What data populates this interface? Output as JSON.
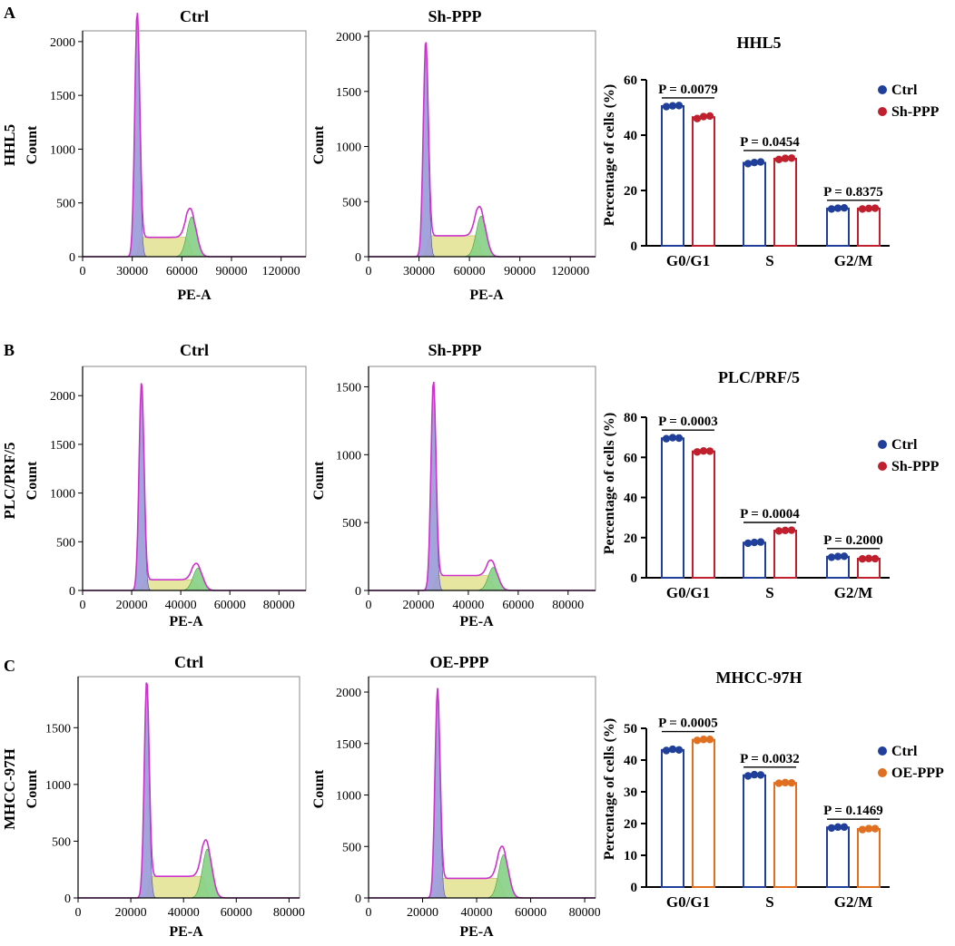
{
  "panels": [
    {
      "letter": "A",
      "row_label": "HHL5",
      "histograms": [
        {
          "title": "Ctrl",
          "ylabel": "Count",
          "xlabel": "PE-A",
          "xticks": [
            "0",
            "30000",
            "60000",
            "90000",
            "120000"
          ],
          "yticks": [
            "0",
            "500",
            "1000",
            "1500",
            "2000"
          ]
        },
        {
          "title": "Sh-PPP",
          "ylabel": "Count",
          "xlabel": "PE-A",
          "xticks": [
            "0",
            "30000",
            "60000",
            "90000",
            "120000"
          ],
          "yticks": [
            "0",
            "500",
            "1000",
            "1500",
            "2000"
          ]
        }
      ],
      "bar_title": "HHL5",
      "bar_ylabel": "Percentage of cells (%)",
      "bar_yticks": [
        "0",
        "20",
        "40",
        "60"
      ],
      "legend": [
        "Ctrl",
        "Sh-PPP"
      ],
      "pvalues": [
        "P = 0.0079",
        "P = 0.0454",
        "P = 0.8375"
      ]
    },
    {
      "letter": "B",
      "row_label": "PLC/PRF/5",
      "histograms": [
        {
          "title": "Ctrl",
          "ylabel": "Count",
          "xlabel": "PE-A",
          "xticks": [
            "0",
            "20000",
            "40000",
            "60000",
            "80000"
          ],
          "yticks": [
            "0",
            "500",
            "1000",
            "1500",
            "2000"
          ]
        },
        {
          "title": "Sh-PPP",
          "ylabel": "Count",
          "xlabel": "PE-A",
          "xticks": [
            "0",
            "20000",
            "40000",
            "60000",
            "80000"
          ],
          "yticks": [
            "0",
            "500",
            "1000",
            "1500"
          ]
        }
      ],
      "bar_title": "PLC/PRF/5",
      "bar_ylabel": "Percentage of cells (%)",
      "bar_yticks": [
        "0",
        "20",
        "40",
        "60",
        "80"
      ],
      "legend": [
        "Ctrl",
        "Sh-PPP"
      ],
      "pvalues": [
        "P = 0.0003",
        "P = 0.0004",
        "P = 0.2000"
      ]
    },
    {
      "letter": "C",
      "row_label": "MHCC-97H",
      "histograms": [
        {
          "title": "Ctrl",
          "ylabel": "Count",
          "xlabel": "PE-A",
          "xticks": [
            "0",
            "20000",
            "40000",
            "60000",
            "80000"
          ],
          "yticks": [
            "0",
            "500",
            "1000",
            "1500"
          ]
        },
        {
          "title": "OE-PPP",
          "ylabel": "Count",
          "xlabel": "PE-A",
          "xticks": [
            "0",
            "20000",
            "40000",
            "60000",
            "80000"
          ],
          "yticks": [
            "0",
            "500",
            "1000",
            "1500",
            "2000"
          ]
        }
      ],
      "bar_title": "MHCC-97H",
      "bar_ylabel": "Percentage of cells (%)",
      "bar_yticks": [
        "0",
        "10",
        "20",
        "30",
        "40",
        "50"
      ],
      "legend": [
        "Ctrl",
        "OE-PPP"
      ],
      "pvalues": [
        "P = 0.0005",
        "P = 0.0032",
        "P = 0.1469"
      ]
    }
  ],
  "colors": {
    "ctrl": "#1f3f9a",
    "treat_red": "#c0202e",
    "treat_orange": "#e07020",
    "g1_fill": "#9a9ad8",
    "s_fill": "#e6e6a0",
    "g2_fill": "#86d086",
    "fit_line": "#cc33cc"
  },
  "chart_data": [
    {
      "type": "area",
      "title": "Ctrl",
      "row": "HHL5",
      "xlabel": "PE-A",
      "ylabel": "Count",
      "xlim": [
        0,
        135000
      ],
      "ylim": [
        0,
        2100
      ],
      "peaks": [
        {
          "phase": "G0/G1",
          "x": 33000,
          "y": 2250
        },
        {
          "phase": "G2/M",
          "x": 66000,
          "y": 370
        }
      ],
      "s_plateau": 180
    },
    {
      "type": "area",
      "title": "Sh-PPP",
      "row": "HHL5",
      "xlabel": "PE-A",
      "ylabel": "Count",
      "xlim": [
        0,
        135000
      ],
      "ylim": [
        0,
        2050
      ],
      "peaks": [
        {
          "phase": "G0/G1",
          "x": 34000,
          "y": 1920
        },
        {
          "phase": "G2/M",
          "x": 67000,
          "y": 370
        }
      ],
      "s_plateau": 190
    },
    {
      "type": "area",
      "title": "Ctrl",
      "row": "PLC/PRF/5",
      "xlabel": "PE-A",
      "ylabel": "Count",
      "xlim": [
        0,
        91000
      ],
      "ylim": [
        0,
        2300
      ],
      "peaks": [
        {
          "phase": "G0/G1",
          "x": 24000,
          "y": 2120
        },
        {
          "phase": "G2/M",
          "x": 47000,
          "y": 230
        }
      ],
      "s_plateau": 110
    },
    {
      "type": "area",
      "title": "Sh-PPP",
      "row": "PLC/PRF/5",
      "xlabel": "PE-A",
      "ylabel": "Count",
      "xlim": [
        0,
        91000
      ],
      "ylim": [
        0,
        1650
      ],
      "peaks": [
        {
          "phase": "G0/G1",
          "x": 26000,
          "y": 1520
        },
        {
          "phase": "G2/M",
          "x": 50000,
          "y": 170
        }
      ],
      "s_plateau": 110
    },
    {
      "type": "area",
      "title": "Ctrl",
      "row": "MHCC-97H",
      "xlabel": "PE-A",
      "ylabel": "Count",
      "xlim": [
        0,
        84000
      ],
      "ylim": [
        0,
        1950
      ],
      "peaks": [
        {
          "phase": "G0/G1",
          "x": 26000,
          "y": 1870
        },
        {
          "phase": "G2/M",
          "x": 49000,
          "y": 430
        }
      ],
      "s_plateau": 190
    },
    {
      "type": "area",
      "title": "OE-PPP",
      "row": "MHCC-97H",
      "xlabel": "PE-A",
      "ylabel": "Count",
      "xlim": [
        0,
        84000
      ],
      "ylim": [
        0,
        2150
      ],
      "peaks": [
        {
          "phase": "G0/G1",
          "x": 25500,
          "y": 1990
        },
        {
          "phase": "G2/M",
          "x": 50000,
          "y": 420
        }
      ],
      "s_plateau": 190
    },
    {
      "type": "bar",
      "title": "HHL5",
      "ylabel": "Percentage of cells (%)",
      "ylim": [
        0,
        60
      ],
      "categories": [
        "G0/G1",
        "S",
        "G2/M"
      ],
      "series": [
        {
          "name": "Ctrl",
          "values": [
            50.5,
            30,
            13.5
          ],
          "points": [
            [
              50.3,
              50.6,
              50.7
            ],
            [
              29.7,
              30.1,
              30.3
            ],
            [
              13.3,
              13.6,
              13.7
            ]
          ]
        },
        {
          "name": "Sh-PPP",
          "values": [
            46.5,
            31.5,
            13.5
          ],
          "points": [
            [
              46.0,
              46.7,
              46.9
            ],
            [
              31.2,
              31.6,
              31.7
            ],
            [
              13.3,
              13.5,
              13.6
            ]
          ]
        }
      ],
      "pvalues": [
        "P = 0.0079",
        "P = 0.0454",
        "P = 0.8375"
      ]
    },
    {
      "type": "bar",
      "title": "PLC/PRF/5",
      "ylabel": "Percentage of cells (%)",
      "ylim": [
        0,
        80
      ],
      "categories": [
        "G0/G1",
        "S",
        "G2/M"
      ],
      "series": [
        {
          "name": "Ctrl",
          "values": [
            69.5,
            17.5,
            10.5
          ],
          "points": [
            [
              69.3,
              69.8,
              69.6
            ],
            [
              17.2,
              17.6,
              17.8
            ],
            [
              10.2,
              10.6,
              10.7
            ]
          ]
        },
        {
          "name": "Sh-PPP",
          "values": [
            63,
            23.5,
            9.5
          ],
          "points": [
            [
              62.7,
              63.2,
              63.1
            ],
            [
              23.3,
              23.6,
              23.7
            ],
            [
              9.4,
              9.6,
              9.5
            ]
          ]
        }
      ],
      "pvalues": [
        "P = 0.0003",
        "P = 0.0004",
        "P = 0.2000"
      ]
    },
    {
      "type": "bar",
      "title": "MHCC-97H",
      "ylabel": "Percentage of cells (%)",
      "ylim": [
        0,
        50
      ],
      "categories": [
        "G0/G1",
        "S",
        "G2/M"
      ],
      "series": [
        {
          "name": "Ctrl",
          "values": [
            43.2,
            35.2,
            18.8
          ],
          "points": [
            [
              43.0,
              43.4,
              43.2
            ],
            [
              35.0,
              35.4,
              35.3
            ],
            [
              18.6,
              18.9,
              18.9
            ]
          ]
        },
        {
          "name": "OE-PPP",
          "values": [
            46.4,
            32.8,
            18.3
          ],
          "points": [
            [
              46.2,
              46.5,
              46.5
            ],
            [
              32.7,
              32.9,
              32.8
            ],
            [
              18.1,
              18.4,
              18.4
            ]
          ]
        }
      ],
      "pvalues": [
        "P = 0.0005",
        "P = 0.0032",
        "P = 0.1469"
      ]
    }
  ]
}
